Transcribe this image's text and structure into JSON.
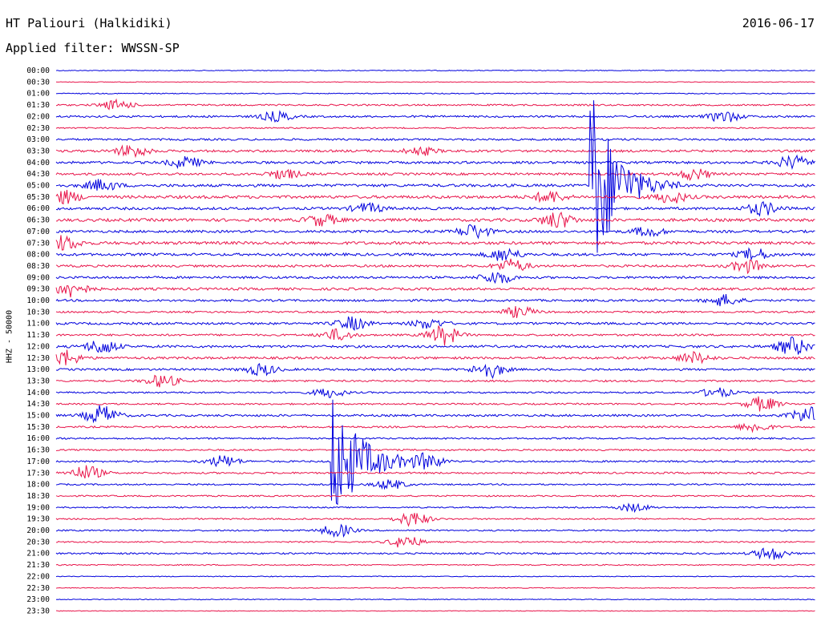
{
  "header": {
    "station": "HT Paliouri (Halkidiki)",
    "date": "2016-06-17",
    "filter": "Applied filter: WWSSN-SP",
    "channel_label": "HHZ - 50000"
  },
  "colors": {
    "even_row": "#0000dd",
    "odd_row": "#e8144a"
  },
  "chart_data": {
    "type": "line",
    "title": "HT Paliouri (Halkidiki)",
    "subtitle": "Applied filter: WWSSN-SP",
    "ylabel": "HHZ - 50000",
    "xlabel": "",
    "grid": false,
    "legend": "none",
    "tick_labels": [
      "00:00",
      "00:30",
      "01:00",
      "01:30",
      "02:00",
      "02:30",
      "03:00",
      "03:30",
      "04:00",
      "04:30",
      "05:00",
      "05:30",
      "06:00",
      "06:30",
      "07:00",
      "07:30",
      "08:00",
      "08:30",
      "09:00",
      "09:30",
      "10:00",
      "10:30",
      "11:00",
      "11:30",
      "12:00",
      "12:30",
      "13:00",
      "13:30",
      "14:00",
      "14:30",
      "15:00",
      "15:30",
      "16:00",
      "16:30",
      "17:00",
      "17:30",
      "18:00",
      "18:30",
      "19:00",
      "19:30",
      "20:00",
      "20:30",
      "21:00",
      "21:30",
      "22:00",
      "22:30",
      "23:00",
      "23:30"
    ],
    "row_noise_levels": [
      0.5,
      0.4,
      0.6,
      1.0,
      1.2,
      0.8,
      1.2,
      1.4,
      1.5,
      1.4,
      1.7,
      1.8,
      1.6,
      1.8,
      1.5,
      1.8,
      1.6,
      1.4,
      1.4,
      1.5,
      1.3,
      1.1,
      1.4,
      1.2,
      1.5,
      1.4,
      1.3,
      1.1,
      1.0,
      1.0,
      1.3,
      1.1,
      1.0,
      1.0,
      1.1,
      1.1,
      0.9,
      0.9,
      0.8,
      0.9,
      0.9,
      0.8,
      1.0,
      0.7,
      0.5,
      0.5,
      0.5,
      0.4
    ],
    "bursts": [
      {
        "row": 3,
        "x": 0.08,
        "amp": 6
      },
      {
        "row": 4,
        "x": 0.29,
        "amp": 6
      },
      {
        "row": 4,
        "x": 0.88,
        "amp": 7
      },
      {
        "row": 7,
        "x": 0.1,
        "amp": 8
      },
      {
        "row": 7,
        "x": 0.48,
        "amp": 5
      },
      {
        "row": 8,
        "x": 0.17,
        "amp": 7
      },
      {
        "row": 8,
        "x": 0.97,
        "amp": 8
      },
      {
        "row": 9,
        "x": 0.3,
        "amp": 6
      },
      {
        "row": 9,
        "x": 0.84,
        "amp": 7
      },
      {
        "row": 10,
        "x": 0.06,
        "amp": 7
      },
      {
        "row": 11,
        "x": 0.01,
        "amp": 8
      },
      {
        "row": 11,
        "x": 0.65,
        "amp": 7
      },
      {
        "row": 11,
        "x": 0.81,
        "amp": 7
      },
      {
        "row": 12,
        "x": 0.41,
        "amp": 6
      },
      {
        "row": 12,
        "x": 0.93,
        "amp": 8
      },
      {
        "row": 13,
        "x": 0.35,
        "amp": 7
      },
      {
        "row": 13,
        "x": 0.66,
        "amp": 10
      },
      {
        "row": 14,
        "x": 0.55,
        "amp": 9
      },
      {
        "row": 14,
        "x": 0.78,
        "amp": 6
      },
      {
        "row": 15,
        "x": 0.01,
        "amp": 9
      },
      {
        "row": 16,
        "x": 0.59,
        "amp": 8
      },
      {
        "row": 16,
        "x": 0.92,
        "amp": 7
      },
      {
        "row": 17,
        "x": 0.6,
        "amp": 8
      },
      {
        "row": 17,
        "x": 0.91,
        "amp": 8
      },
      {
        "row": 18,
        "x": 0.58,
        "amp": 8
      },
      {
        "row": 19,
        "x": 0.02,
        "amp": 10
      },
      {
        "row": 20,
        "x": 0.88,
        "amp": 7
      },
      {
        "row": 21,
        "x": 0.61,
        "amp": 7
      },
      {
        "row": 22,
        "x": 0.39,
        "amp": 8
      },
      {
        "row": 22,
        "x": 0.49,
        "amp": 6
      },
      {
        "row": 23,
        "x": 0.51,
        "amp": 12
      },
      {
        "row": 23,
        "x": 0.37,
        "amp": 7
      },
      {
        "row": 24,
        "x": 0.06,
        "amp": 9
      },
      {
        "row": 24,
        "x": 0.97,
        "amp": 11
      },
      {
        "row": 25,
        "x": 0.01,
        "amp": 10
      },
      {
        "row": 25,
        "x": 0.84,
        "amp": 7
      },
      {
        "row": 26,
        "x": 0.27,
        "amp": 7
      },
      {
        "row": 26,
        "x": 0.57,
        "amp": 10
      },
      {
        "row": 27,
        "x": 0.14,
        "amp": 8
      },
      {
        "row": 28,
        "x": 0.36,
        "amp": 6
      },
      {
        "row": 28,
        "x": 0.87,
        "amp": 6
      },
      {
        "row": 29,
        "x": 0.93,
        "amp": 9
      },
      {
        "row": 30,
        "x": 0.06,
        "amp": 12
      },
      {
        "row": 30,
        "x": 0.99,
        "amp": 10
      },
      {
        "row": 31,
        "x": 0.92,
        "amp": 6
      },
      {
        "row": 34,
        "x": 0.22,
        "amp": 7
      },
      {
        "row": 34,
        "x": 0.49,
        "amp": 8
      },
      {
        "row": 35,
        "x": 0.04,
        "amp": 9
      },
      {
        "row": 36,
        "x": 0.44,
        "amp": 6
      },
      {
        "row": 38,
        "x": 0.76,
        "amp": 5
      },
      {
        "row": 39,
        "x": 0.47,
        "amp": 9
      },
      {
        "row": 40,
        "x": 0.37,
        "amp": 8
      },
      {
        "row": 41,
        "x": 0.46,
        "amp": 8
      },
      {
        "row": 42,
        "x": 0.94,
        "amp": 8
      }
    ],
    "events": [
      {
        "row": 10,
        "x": 0.702,
        "peak_amp": 140,
        "duration": 0.03
      },
      {
        "row": 34,
        "x": 0.362,
        "peak_amp": 90,
        "duration": 0.035
      }
    ]
  }
}
